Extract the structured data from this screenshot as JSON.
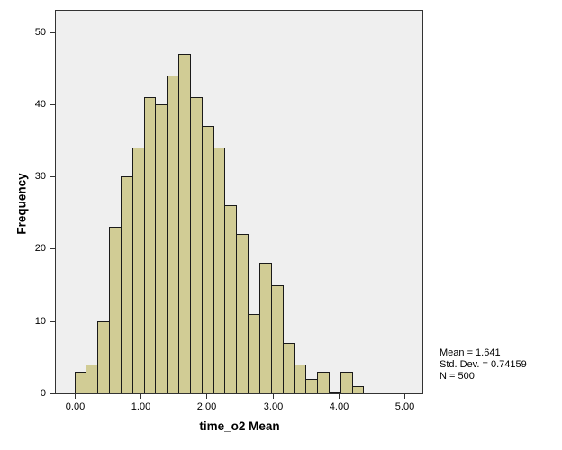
{
  "chart_data": {
    "type": "bar",
    "chart_kind": "histogram",
    "title": "",
    "xlabel": "time_o2 Mean",
    "ylabel": "Frequency",
    "bin_start": 0.0,
    "bin_width": 0.175,
    "values": [
      3,
      4,
      10,
      23,
      30,
      34,
      41,
      40,
      44,
      47,
      41,
      37,
      34,
      26,
      22,
      11,
      18,
      15,
      7,
      4,
      2,
      3,
      0,
      3,
      1
    ],
    "total_n": 500,
    "x_ticks": [
      {
        "value": 0,
        "label": "0.00"
      },
      {
        "value": 1,
        "label": "1.00"
      },
      {
        "value": 2,
        "label": "2.00"
      },
      {
        "value": 3,
        "label": "3.00"
      },
      {
        "value": 4,
        "label": "4.00"
      },
      {
        "value": 5,
        "label": "5.00"
      }
    ],
    "y_ticks": [
      {
        "value": 0,
        "label": "0"
      },
      {
        "value": 10,
        "label": "10"
      },
      {
        "value": 20,
        "label": "20"
      },
      {
        "value": 30,
        "label": "30"
      },
      {
        "value": 40,
        "label": "40"
      },
      {
        "value": 50,
        "label": "50"
      }
    ],
    "xlim": [
      -0.28,
      5.27
    ],
    "ylim": [
      0,
      53.1
    ],
    "grid": false,
    "legend": "none",
    "annotation": {
      "lines": [
        "Mean = 1.641",
        "Std. Dev. = 0.74159",
        "N = 500"
      ]
    },
    "colors": {
      "bar_fill": "#d1cc95",
      "bar_border": "#1a1a1a",
      "plot_bg": "#efefef",
      "frame": "#333333",
      "page_bg": "#ffffff",
      "text": "#000000"
    }
  }
}
